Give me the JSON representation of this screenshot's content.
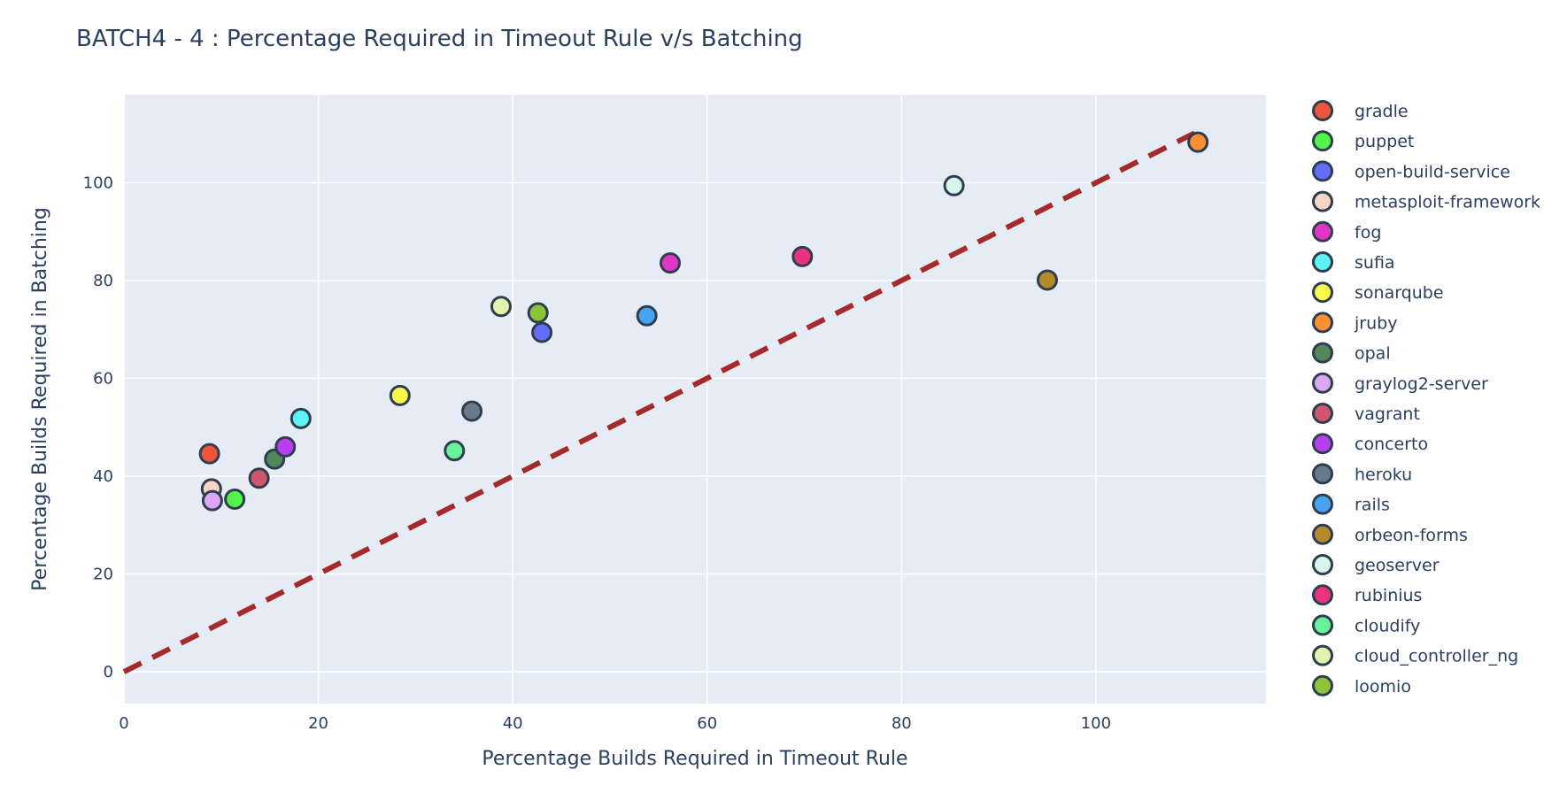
{
  "chart_data": {
    "type": "scatter",
    "title": "BATCH4 - 4 : Percentage Required in Timeout Rule v/s Batching",
    "xlabel": "Percentage Builds Required in Timeout Rule",
    "ylabel": "Percentage Builds Required in Batching",
    "xlim": [
      0,
      117.5
    ],
    "ylim": [
      -6.5,
      118
    ],
    "x_ticks": [
      0,
      20,
      40,
      60,
      80,
      100
    ],
    "y_ticks": [
      0,
      20,
      40,
      60,
      80,
      100
    ],
    "grid": true,
    "legend_position": "right",
    "plot_background": "#e5ecf6",
    "marker_outline": "#2f3e4e",
    "reference_line": {
      "x": [
        0,
        111
      ],
      "y": [
        0,
        111
      ],
      "color": "#a52a2a",
      "style": "dashed"
    },
    "series": [
      {
        "name": "gradle",
        "color": "#ef553b",
        "x": [
          8.8
        ],
        "y": [
          44.6
        ]
      },
      {
        "name": "puppet",
        "color": "#54f34a",
        "x": [
          11.4
        ],
        "y": [
          35.3
        ]
      },
      {
        "name": "open-build-service",
        "color": "#636efa",
        "x": [
          43.0
        ],
        "y": [
          69.4
        ]
      },
      {
        "name": "metasploit-framework",
        "color": "#f8d5c4",
        "x": [
          9.0
        ],
        "y": [
          37.4
        ]
      },
      {
        "name": "fog",
        "color": "#e335c5",
        "x": [
          56.2
        ],
        "y": [
          83.6
        ]
      },
      {
        "name": "sufia",
        "color": "#5ef3f5",
        "x": [
          18.2
        ],
        "y": [
          51.8
        ]
      },
      {
        "name": "sonarqube",
        "color": "#f8f84a",
        "x": [
          28.4
        ],
        "y": [
          56.5
        ]
      },
      {
        "name": "jruby",
        "color": "#fa8f34",
        "x": [
          110.5
        ],
        "y": [
          108.3
        ]
      },
      {
        "name": "opal",
        "color": "#54875a",
        "x": [
          15.5
        ],
        "y": [
          43.5
        ]
      },
      {
        "name": "graylog2-server",
        "color": "#dba6f2",
        "x": [
          9.1
        ],
        "y": [
          35.0
        ]
      },
      {
        "name": "vagrant",
        "color": "#d0566e",
        "x": [
          13.9
        ],
        "y": [
          39.6
        ]
      },
      {
        "name": "concerto",
        "color": "#b83ef0",
        "x": [
          16.6
        ],
        "y": [
          46.0
        ]
      },
      {
        "name": "heroku",
        "color": "#6a7a8e",
        "x": [
          35.8
        ],
        "y": [
          53.3
        ]
      },
      {
        "name": "rails",
        "color": "#45a5f2",
        "x": [
          53.8
        ],
        "y": [
          72.8
        ]
      },
      {
        "name": "orbeon-forms",
        "color": "#b38b2c",
        "x": [
          95.0
        ],
        "y": [
          80.1
        ]
      },
      {
        "name": "geoserver",
        "color": "#d8f7ea",
        "x": [
          85.4
        ],
        "y": [
          99.4
        ]
      },
      {
        "name": "rubinius",
        "color": "#e8347f",
        "x": [
          69.8
        ],
        "y": [
          84.9
        ]
      },
      {
        "name": "cloudify",
        "color": "#6af29a",
        "x": [
          34.0
        ],
        "y": [
          45.2
        ]
      },
      {
        "name": "cloud_controller_ng",
        "color": "#e2f2ae",
        "x": [
          38.8
        ],
        "y": [
          74.7
        ]
      },
      {
        "name": "loomio",
        "color": "#8cc43a",
        "x": [
          42.6
        ],
        "y": [
          73.4
        ]
      }
    ]
  }
}
